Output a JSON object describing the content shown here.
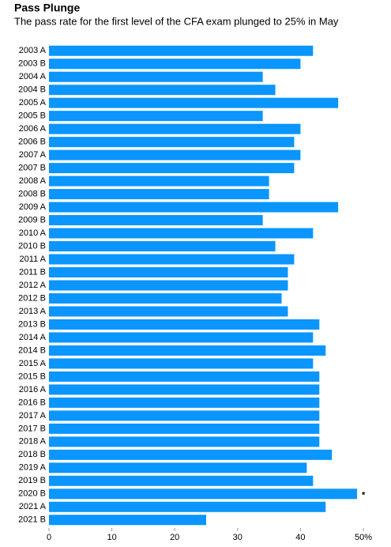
{
  "chart_data": {
    "type": "hbar",
    "title": "Pass Plunge",
    "subtitle": "The pass rate for the first level of the CFA exam plunged to 25% in May",
    "categories": [
      "2003 A",
      "2003 B",
      "2004 A",
      "2004 B",
      "2005 A",
      "2005 B",
      "2006 A",
      "2006 B",
      "2007 A",
      "2007 B",
      "2008 A",
      "2008 B",
      "2009 A",
      "2009 B",
      "2010 A",
      "2010 B",
      "2011 A",
      "2011 B",
      "2012 A",
      "2012 B",
      "2013 A",
      "2013 B",
      "2014 A",
      "2014 B",
      "2015 A",
      "2015 B",
      "2016 A",
      "2016 B",
      "2017 A",
      "2017 B",
      "2018 A",
      "2018 B",
      "2019 A",
      "2019 B",
      "2020 B",
      "2021 A",
      "2021 B"
    ],
    "values": [
      42,
      40,
      34,
      36,
      46,
      34,
      40,
      39,
      40,
      39,
      35,
      35,
      46,
      34,
      42,
      36,
      39,
      38,
      38,
      37,
      38,
      43,
      42,
      44,
      42,
      43,
      43,
      43,
      43,
      43,
      43,
      45,
      41,
      42,
      49,
      44,
      25
    ],
    "color": "#0a95ff",
    "annotation": {
      "text": "*",
      "category": "2020 B"
    },
    "xlim": [
      0,
      50
    ],
    "xticks": [
      0,
      10,
      20,
      30,
      40,
      {
        "value": 50,
        "label": "50%"
      }
    ]
  }
}
